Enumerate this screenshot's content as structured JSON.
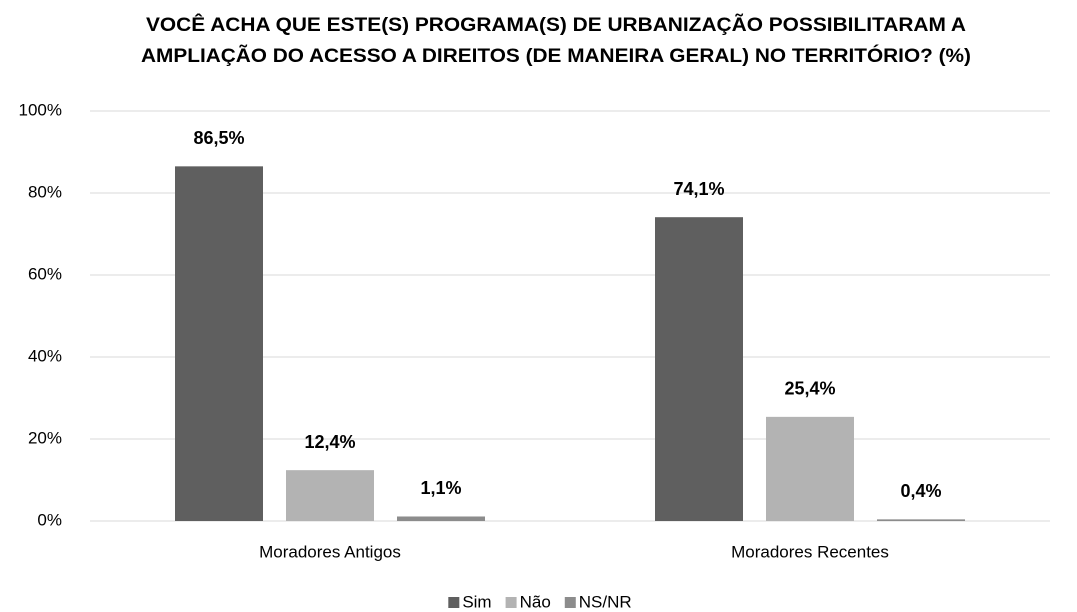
{
  "chart_data": {
    "type": "bar",
    "title": [
      "VOCÊ ACHA QUE ESTE(S) PROGRAMA(S) DE URBANIZAÇÃO POSSIBILITARAM A",
      "AMPLIAÇÃO DO ACESSO A DIREITOS (DE MANEIRA GERAL) NO TERRITÓRIO? (%)"
    ],
    "categories": [
      "Moradores Antigos",
      "Moradores Recentes"
    ],
    "series": [
      {
        "name": "Sim",
        "color": "#5f5f5f",
        "values": [
          86.5,
          74.1
        ],
        "value_labels": [
          "86,5%",
          "74,1%"
        ]
      },
      {
        "name": "Não",
        "color": "#b3b3b3",
        "values": [
          12.4,
          25.4
        ],
        "value_labels": [
          "12,4%",
          "25,4%"
        ]
      },
      {
        "name": "NS/NR",
        "color": "#8c8c8c",
        "values": [
          1.1,
          0.4
        ],
        "value_labels": [
          "1,1%",
          "0,4%"
        ]
      }
    ],
    "ylim": [
      0,
      100
    ],
    "yticks": [
      {
        "value": 0,
        "label": "0%"
      },
      {
        "value": 20,
        "label": "20%"
      },
      {
        "value": 40,
        "label": "40%"
      },
      {
        "value": 60,
        "label": "60%"
      },
      {
        "value": 80,
        "label": "80%"
      },
      {
        "value": 100,
        "label": "100%"
      }
    ],
    "grid": true,
    "legend": "bottom"
  }
}
